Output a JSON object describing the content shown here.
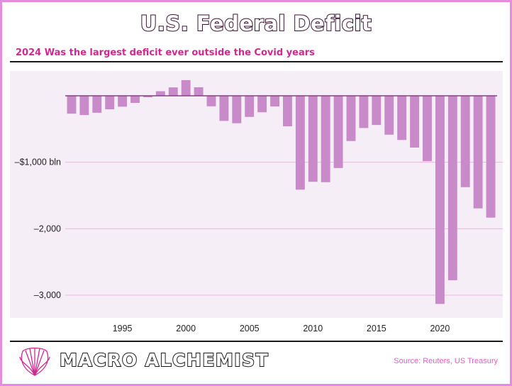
{
  "header": {
    "title": "U.S. Federal Deficit",
    "subtitle": "2024 Was the largest deficit ever outside the Covid years"
  },
  "footer": {
    "brand": "MACRO ALCHEMIST",
    "source": "Source: Reuters, US Treasury",
    "logo_icon": "shell-icon"
  },
  "colors": {
    "bar": "#c98ac9",
    "plot_background": "#f6eef6",
    "gridline": "#e8b8e3",
    "zero_line": "#8a3d8a",
    "subtitle": "#d0288f",
    "frame": "#e58be0"
  },
  "chart_data": {
    "type": "bar",
    "title": "U.S. Federal Deficit",
    "subtitle": "2024 Was the largest deficit ever outside the Covid years",
    "xlabel": "",
    "ylabel": "",
    "x": [
      1991,
      1992,
      1993,
      1994,
      1995,
      1996,
      1997,
      1998,
      1999,
      2000,
      2001,
      2002,
      2003,
      2004,
      2005,
      2006,
      2007,
      2008,
      2009,
      2010,
      2011,
      2012,
      2013,
      2014,
      2015,
      2016,
      2017,
      2018,
      2019,
      2020,
      2021,
      2022,
      2023,
      2024
    ],
    "values": [
      -269,
      -290,
      -255,
      -203,
      -164,
      -107,
      -22,
      69,
      126,
      236,
      128,
      -158,
      -378,
      -413,
      -318,
      -248,
      -161,
      -459,
      -1413,
      -1294,
      -1300,
      -1087,
      -680,
      -485,
      -439,
      -585,
      -665,
      -779,
      -984,
      -3132,
      -2775,
      -1375,
      -1694,
      -1833
    ],
    "ylim": [
      -3250,
      300
    ],
    "y_ticks": [
      {
        "value": -1000,
        "label": "–$1,000 bln"
      },
      {
        "value": -2000,
        "label": "–2,000"
      },
      {
        "value": -3000,
        "label": "–3,000"
      }
    ],
    "x_ticks": [
      {
        "value": 1995,
        "label": "1995"
      },
      {
        "value": 2000,
        "label": "2000"
      },
      {
        "value": 2005,
        "label": "2005"
      },
      {
        "value": 2010,
        "label": "2010"
      },
      {
        "value": 2015,
        "label": "2015"
      },
      {
        "value": 2020,
        "label": "2020"
      }
    ],
    "grid": true,
    "legend": "none"
  }
}
